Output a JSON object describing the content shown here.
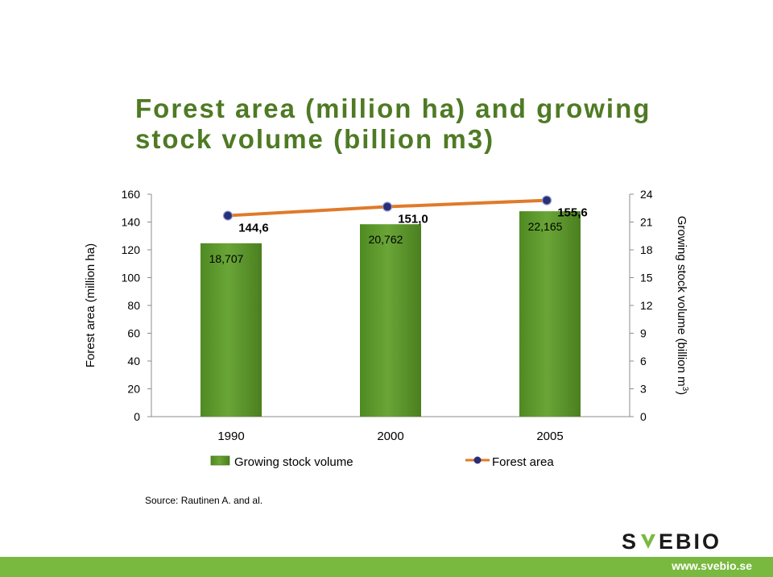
{
  "title_line1": "Forest area (million ha) and growing",
  "title_line2": "stock volume (billion m3)",
  "source": "Source: Rautinen A. and al.",
  "logo_text": "SVEBIO",
  "url": "www.svebio.se",
  "colors": {
    "title": "#4f7a24",
    "bar": "#6aa537",
    "line": "#e07a2a",
    "marker": "#2b2f78",
    "footer": "#79b940"
  },
  "chart_data": {
    "type": "bar",
    "title": "Forest area (million ha) and growing stock volume (billion m3)",
    "categories": [
      "1990",
      "2000",
      "2005"
    ],
    "y_left": {
      "label": "Forest area (million ha)",
      "range": [
        0,
        160
      ],
      "ticks": [
        "0",
        "20",
        "40",
        "60",
        "80",
        "100",
        "120",
        "140",
        "160"
      ]
    },
    "y_right": {
      "label": "Growing stock volume (billion m",
      "label_sup": "3",
      "label_end": ")",
      "range": [
        0,
        24
      ],
      "ticks": [
        "0",
        "3",
        "6",
        "9",
        "12",
        "15",
        "18",
        "21",
        "24"
      ]
    },
    "series": [
      {
        "name": "Growing stock volume",
        "type": "bar",
        "axis": "right",
        "values": [
          18.707,
          20.762,
          22.165
        ],
        "labels": [
          "18,707",
          "20,762",
          "22,165"
        ]
      },
      {
        "name": "Forest area",
        "type": "line",
        "axis": "left",
        "values": [
          144.6,
          151.0,
          155.6
        ],
        "labels": [
          "144,6",
          "151,0",
          "155,6"
        ]
      }
    ],
    "legend_position": "bottom"
  }
}
